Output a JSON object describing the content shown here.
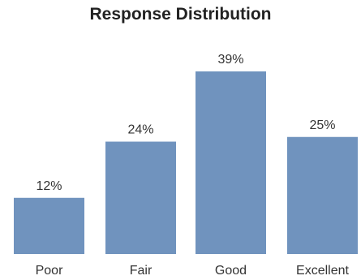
{
  "chart_data": {
    "type": "bar",
    "title": "Response Distribution",
    "categories": [
      "Poor",
      "Fair",
      "Good",
      "Excellent"
    ],
    "values": [
      12,
      24,
      39,
      25
    ],
    "value_labels": [
      "12%",
      "24%",
      "39%",
      "25%"
    ],
    "xlabel": "",
    "ylabel": "",
    "ylim": [
      0,
      40
    ],
    "grid": false,
    "legend": "none",
    "bar_color": "#7093be"
  }
}
